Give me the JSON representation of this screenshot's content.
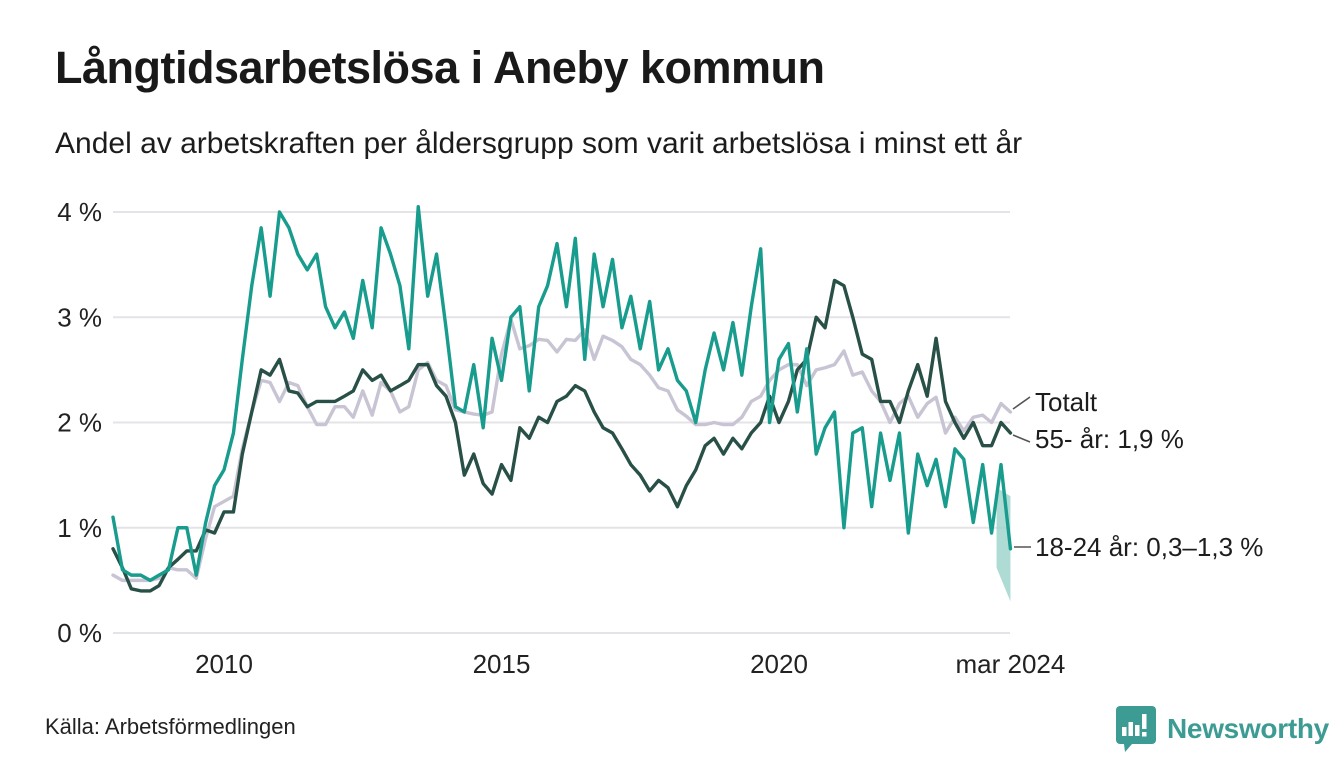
{
  "header": {
    "title": "Långtidsarbetslösa i Aneby kommun",
    "subtitle": "Andel av arbetskraften per åldersgrupp som varit arbetslösa i minst ett år"
  },
  "footer": {
    "source": "Källa: Arbetsförmedlingen",
    "brand": "Newsworthy"
  },
  "colors": {
    "teal_line": "#189c8d",
    "dark_green_line": "#285047",
    "grey_line": "#c8c4d3",
    "band_fill": "#9bd2ca",
    "gridline": "#e4e4e8",
    "annotation_connector": "#555555",
    "brand_teal": "#3c9c93"
  },
  "chart_data": {
    "type": "line",
    "title": "Långtidsarbetslösa i Aneby kommun",
    "subtitle": "Andel av arbetskraften per åldersgrupp som varit arbetslösa i minst ett år",
    "xlabel": "",
    "ylabel": "",
    "ylim": [
      0,
      4.2
    ],
    "xlim": [
      2007.9,
      2024.25
    ],
    "grid": "horizontal",
    "legend_position": "end-of-line-labels",
    "y_ticks": [
      {
        "value": 0,
        "label": "0 %"
      },
      {
        "value": 1,
        "label": "1 %"
      },
      {
        "value": 2,
        "label": "2 %"
      },
      {
        "value": 3,
        "label": "3 %"
      },
      {
        "value": 4,
        "label": "4 %"
      }
    ],
    "x_ticks": [
      {
        "year": 2010,
        "label": "2010"
      },
      {
        "year": 2015,
        "label": "2015"
      },
      {
        "year": 2020,
        "label": "2020"
      },
      {
        "year": 2024.17,
        "label": "mar 2024"
      }
    ],
    "x": [
      2008,
      2008.17,
      2008.33,
      2008.5,
      2008.67,
      2008.83,
      2009,
      2009.17,
      2009.33,
      2009.5,
      2009.67,
      2009.83,
      2010,
      2010.17,
      2010.33,
      2010.5,
      2010.67,
      2010.83,
      2011,
      2011.17,
      2011.33,
      2011.5,
      2011.67,
      2011.83,
      2012,
      2012.17,
      2012.33,
      2012.5,
      2012.67,
      2012.83,
      2013,
      2013.17,
      2013.33,
      2013.5,
      2013.67,
      2013.83,
      2014,
      2014.17,
      2014.33,
      2014.5,
      2014.67,
      2014.83,
      2015,
      2015.17,
      2015.33,
      2015.5,
      2015.67,
      2015.83,
      2016,
      2016.17,
      2016.33,
      2016.5,
      2016.67,
      2016.83,
      2017,
      2017.17,
      2017.33,
      2017.5,
      2017.67,
      2017.83,
      2018,
      2018.17,
      2018.33,
      2018.5,
      2018.67,
      2018.83,
      2019,
      2019.17,
      2019.33,
      2019.5,
      2019.67,
      2019.83,
      2020,
      2020.17,
      2020.33,
      2020.5,
      2020.67,
      2020.83,
      2021,
      2021.17,
      2021.33,
      2021.5,
      2021.67,
      2021.83,
      2022,
      2022.17,
      2022.33,
      2022.5,
      2022.67,
      2022.83,
      2023,
      2023.17,
      2023.33,
      2023.5,
      2023.67,
      2023.83,
      2024,
      2024.17
    ],
    "series": [
      {
        "name": "Totalt",
        "color": "#c8c4d3",
        "end_value_label": null,
        "values": [
          0.55,
          0.5,
          0.5,
          0.5,
          0.5,
          0.52,
          0.62,
          0.6,
          0.6,
          0.52,
          0.9,
          1.2,
          1.25,
          1.3,
          1.75,
          2.1,
          2.4,
          2.38,
          2.2,
          2.38,
          2.35,
          2.15,
          1.98,
          1.98,
          2.15,
          2.15,
          2.05,
          2.3,
          2.07,
          2.38,
          2.3,
          2.1,
          2.15,
          2.5,
          2.57,
          2.4,
          2.35,
          2.12,
          2.1,
          2.08,
          2.07,
          2.1,
          2.65,
          2.98,
          2.7,
          2.73,
          2.79,
          2.78,
          2.67,
          2.79,
          2.78,
          2.88,
          2.6,
          2.82,
          2.78,
          2.72,
          2.6,
          2.55,
          2.45,
          2.33,
          2.3,
          2.12,
          2.06,
          1.98,
          1.98,
          2.0,
          1.98,
          1.98,
          2.05,
          2.2,
          2.25,
          2.4,
          2.5,
          2.55,
          2.55,
          2.35,
          2.5,
          2.52,
          2.55,
          2.68,
          2.45,
          2.48,
          2.3,
          2.2,
          2.0,
          2.18,
          2.25,
          2.05,
          2.18,
          2.24,
          1.9,
          2.05,
          1.92,
          2.05,
          2.07,
          2.0,
          2.18,
          2.1
        ]
      },
      {
        "name": "55- år",
        "color": "#285047",
        "end_value_label": "1,9 %",
        "values": [
          0.8,
          0.62,
          0.42,
          0.4,
          0.4,
          0.45,
          0.62,
          0.7,
          0.78,
          0.78,
          0.98,
          0.95,
          1.15,
          1.15,
          1.7,
          2.1,
          2.5,
          2.45,
          2.6,
          2.3,
          2.28,
          2.15,
          2.2,
          2.2,
          2.2,
          2.25,
          2.3,
          2.5,
          2.4,
          2.45,
          2.3,
          2.35,
          2.4,
          2.55,
          2.55,
          2.35,
          2.25,
          2.0,
          1.5,
          1.7,
          1.42,
          1.32,
          1.6,
          1.45,
          1.95,
          1.85,
          2.05,
          2.0,
          2.2,
          2.25,
          2.35,
          2.3,
          2.1,
          1.95,
          1.9,
          1.75,
          1.6,
          1.5,
          1.35,
          1.45,
          1.38,
          1.2,
          1.4,
          1.55,
          1.78,
          1.85,
          1.7,
          1.85,
          1.75,
          1.9,
          2.0,
          2.25,
          2.0,
          2.2,
          2.5,
          2.6,
          3.0,
          2.9,
          3.35,
          3.3,
          3.0,
          2.65,
          2.6,
          2.2,
          2.2,
          2.0,
          2.3,
          2.55,
          2.25,
          2.8,
          2.2,
          2.0,
          1.85,
          2.0,
          1.78,
          1.78,
          2.0,
          1.9
        ]
      },
      {
        "name": "18-24 år",
        "color": "#189c8d",
        "end_value_label": "0,3–1,3 %",
        "values": [
          1.1,
          0.6,
          0.55,
          0.55,
          0.5,
          0.55,
          0.6,
          1.0,
          1.0,
          0.55,
          1.05,
          1.4,
          1.55,
          1.9,
          2.6,
          3.3,
          3.85,
          3.2,
          4.0,
          3.85,
          3.6,
          3.45,
          3.6,
          3.1,
          2.9,
          3.05,
          2.8,
          3.35,
          2.9,
          3.85,
          3.6,
          3.3,
          2.7,
          4.05,
          3.2,
          3.6,
          2.9,
          2.15,
          2.1,
          2.55,
          1.95,
          2.8,
          2.4,
          3.0,
          3.1,
          2.3,
          3.1,
          3.3,
          3.7,
          3.1,
          3.75,
          2.6,
          3.6,
          3.1,
          3.55,
          2.9,
          3.2,
          2.7,
          3.15,
          2.5,
          2.7,
          2.4,
          2.3,
          2.0,
          2.5,
          2.85,
          2.5,
          2.95,
          2.45,
          3.1,
          3.65,
          2.0,
          2.6,
          2.75,
          2.1,
          2.7,
          1.7,
          1.95,
          2.1,
          1.0,
          1.9,
          1.95,
          1.2,
          1.9,
          1.45,
          1.9,
          0.95,
          1.7,
          1.4,
          1.65,
          1.2,
          1.75,
          1.65,
          1.05,
          1.6,
          0.95,
          1.6,
          0.8
        ]
      }
    ],
    "uncertainty_band": {
      "series": "18-24 år",
      "x": [
        2023.92,
        2024.17
      ],
      "top": [
        1.38,
        1.3
      ],
      "bottom": [
        0.62,
        0.3
      ],
      "color": "#9bd2ca",
      "range_label": "0,3–1,3 %"
    },
    "annotations": [
      {
        "id": "totalt",
        "label": "Totalt"
      },
      {
        "id": "age55",
        "label": "55- år: 1,9 %"
      },
      {
        "id": "age1824",
        "label": "18-24 år: 0,3–1,3 %"
      }
    ]
  }
}
